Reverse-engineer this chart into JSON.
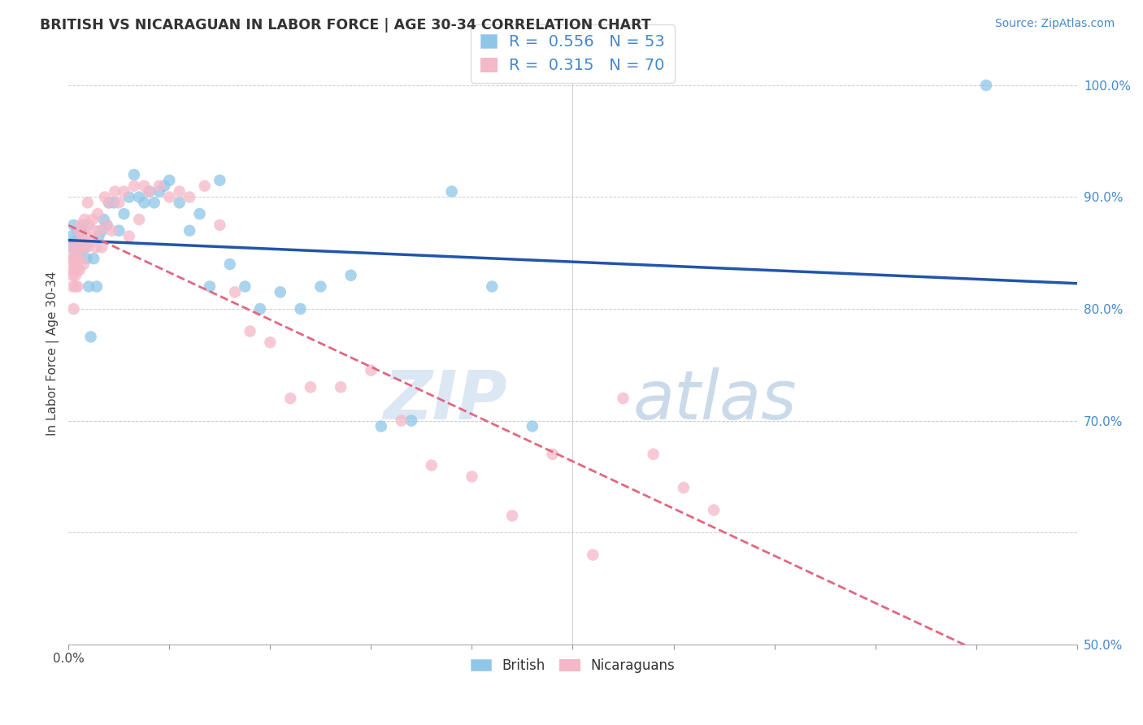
{
  "title": "BRITISH VS NICARAGUAN IN LABOR FORCE | AGE 30-34 CORRELATION CHART",
  "source_text": "Source: ZipAtlas.com",
  "ylabel": "In Labor Force | Age 30-34",
  "xlim": [
    0.0,
    1.0
  ],
  "ylim": [
    0.5,
    1.02
  ],
  "x_tick_positions": [
    0.0,
    0.1,
    0.2,
    0.3,
    0.4,
    0.5,
    0.6,
    0.7,
    0.8,
    0.9,
    1.0
  ],
  "x_tick_labels": [
    "0.0%",
    "",
    "",
    "",
    "",
    "",
    "",
    "",
    "",
    "",
    ""
  ],
  "y_tick_positions": [
    0.5,
    0.6,
    0.7,
    0.8,
    0.9,
    1.0
  ],
  "y_tick_labels": [
    "50.0%",
    "",
    "70.0%",
    "80.0%",
    "90.0%",
    "100.0%"
  ],
  "british_R": 0.556,
  "british_N": 53,
  "nicaraguan_R": 0.315,
  "nicaraguan_N": 70,
  "british_color": "#8ec6e8",
  "nicaraguan_color": "#f5b8c8",
  "british_line_color": "#2255aa",
  "nicaraguan_line_color": "#e06880",
  "british_x": [
    0.003,
    0.004,
    0.005,
    0.006,
    0.007,
    0.008,
    0.009,
    0.01,
    0.011,
    0.012,
    0.013,
    0.015,
    0.016,
    0.018,
    0.02,
    0.022,
    0.025,
    0.028,
    0.03,
    0.033,
    0.035,
    0.038,
    0.04,
    0.045,
    0.05,
    0.055,
    0.06,
    0.065,
    0.07,
    0.075,
    0.08,
    0.085,
    0.09,
    0.095,
    0.1,
    0.11,
    0.12,
    0.13,
    0.14,
    0.15,
    0.16,
    0.175,
    0.19,
    0.21,
    0.23,
    0.25,
    0.28,
    0.31,
    0.34,
    0.38,
    0.42,
    0.46,
    0.91
  ],
  "british_y": [
    0.865,
    0.855,
    0.875,
    0.86,
    0.845,
    0.855,
    0.87,
    0.85,
    0.86,
    0.868,
    0.87,
    0.875,
    0.855,
    0.845,
    0.82,
    0.775,
    0.845,
    0.82,
    0.865,
    0.87,
    0.88,
    0.875,
    0.895,
    0.895,
    0.87,
    0.885,
    0.9,
    0.92,
    0.9,
    0.895,
    0.905,
    0.895,
    0.905,
    0.91,
    0.915,
    0.895,
    0.87,
    0.885,
    0.82,
    0.915,
    0.84,
    0.82,
    0.8,
    0.815,
    0.8,
    0.82,
    0.83,
    0.695,
    0.7,
    0.905,
    0.82,
    0.695,
    1.0
  ],
  "nicaraguan_x": [
    0.002,
    0.003,
    0.003,
    0.004,
    0.004,
    0.005,
    0.005,
    0.006,
    0.006,
    0.007,
    0.007,
    0.008,
    0.008,
    0.009,
    0.009,
    0.01,
    0.01,
    0.011,
    0.011,
    0.012,
    0.013,
    0.014,
    0.015,
    0.016,
    0.017,
    0.018,
    0.019,
    0.02,
    0.022,
    0.024,
    0.025,
    0.027,
    0.029,
    0.031,
    0.033,
    0.036,
    0.038,
    0.04,
    0.043,
    0.046,
    0.05,
    0.055,
    0.06,
    0.065,
    0.07,
    0.075,
    0.08,
    0.09,
    0.1,
    0.11,
    0.12,
    0.135,
    0.15,
    0.165,
    0.18,
    0.2,
    0.22,
    0.24,
    0.27,
    0.3,
    0.33,
    0.36,
    0.4,
    0.44,
    0.48,
    0.52,
    0.55,
    0.58,
    0.61,
    0.64
  ],
  "nicaraguan_y": [
    0.855,
    0.845,
    0.835,
    0.83,
    0.82,
    0.8,
    0.845,
    0.84,
    0.835,
    0.83,
    0.82,
    0.855,
    0.845,
    0.835,
    0.82,
    0.87,
    0.855,
    0.845,
    0.835,
    0.875,
    0.865,
    0.855,
    0.84,
    0.88,
    0.865,
    0.855,
    0.895,
    0.875,
    0.86,
    0.88,
    0.87,
    0.855,
    0.885,
    0.87,
    0.855,
    0.9,
    0.875,
    0.895,
    0.87,
    0.905,
    0.895,
    0.905,
    0.865,
    0.91,
    0.88,
    0.91,
    0.905,
    0.91,
    0.9,
    0.905,
    0.9,
    0.91,
    0.875,
    0.815,
    0.78,
    0.77,
    0.72,
    0.73,
    0.73,
    0.745,
    0.7,
    0.66,
    0.65,
    0.615,
    0.67,
    0.58,
    0.72,
    0.67,
    0.64,
    0.62
  ]
}
